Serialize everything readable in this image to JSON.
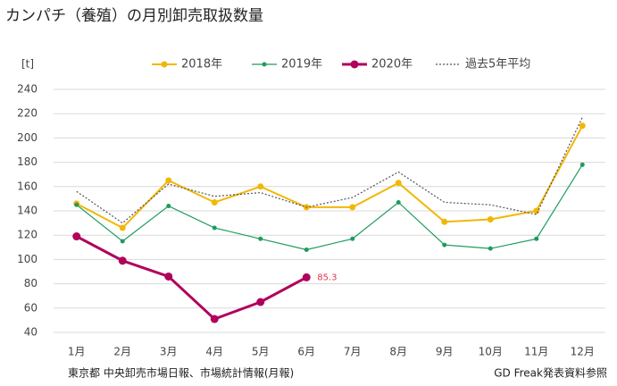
{
  "chart_data": {
    "type": "line",
    "title": "カンパチ（養殖）の月別卸売取扱数量",
    "y_label": "[t]",
    "categories": [
      "1月",
      "2月",
      "3月",
      "4月",
      "5月",
      "6月",
      "7月",
      "8月",
      "9月",
      "10月",
      "11月",
      "12月"
    ],
    "series": [
      {
        "name": "2018年",
        "color": "#f2b705",
        "values": [
          146,
          126,
          165,
          147,
          160,
          143,
          143,
          163,
          131,
          133,
          140,
          210
        ]
      },
      {
        "name": "2019年",
        "color": "#1e9b5e",
        "values": [
          145,
          115,
          144,
          126,
          117,
          108,
          117,
          147,
          112,
          109,
          117,
          178
        ]
      },
      {
        "name": "2020年",
        "color": "#b0005c",
        "values": [
          119,
          99,
          86,
          51,
          65,
          85.3,
          null,
          null,
          null,
          null,
          null,
          null
        ]
      },
      {
        "name": "過去5年平均",
        "color": "#555555",
        "dashed": true,
        "values": [
          156,
          130,
          162,
          152,
          155,
          143,
          151,
          172,
          147,
          145,
          137,
          217
        ]
      }
    ],
    "ylim": [
      40,
      240
    ],
    "yticks": [
      40,
      60,
      80,
      100,
      120,
      140,
      160,
      180,
      200,
      220,
      240
    ],
    "grid": true,
    "source_left": "東京都 中央卸売市場日報、市場統計情報(月報)",
    "source_right": "GD Freak発表資料参照"
  }
}
